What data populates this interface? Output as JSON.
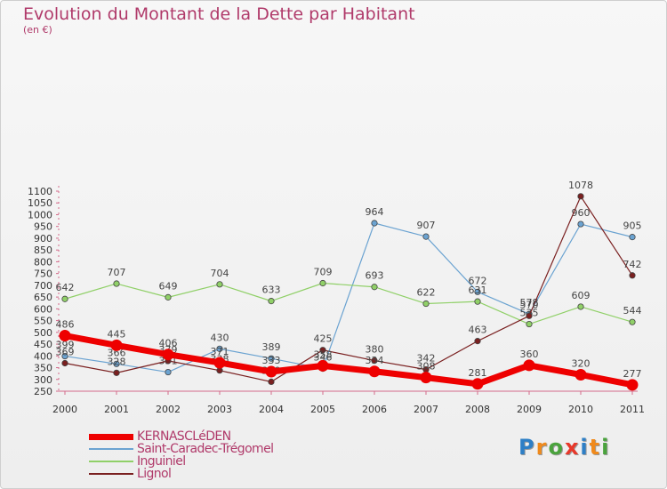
{
  "title": "Evolution du Montant de la Dette par Habitant",
  "subtitle": "(en €)",
  "logo": {
    "text": "Proxiti",
    "letters": [
      {
        "ch": "P",
        "color": "#2e7fc6"
      },
      {
        "ch": "r",
        "color": "#f08a1c"
      },
      {
        "ch": "o",
        "color": "#4aa33d"
      },
      {
        "ch": "x",
        "color": "#e8382a"
      },
      {
        "ch": "i",
        "color": "#2e7fc6"
      },
      {
        "ch": "t",
        "color": "#f08a1c"
      },
      {
        "ch": "i",
        "color": "#4aa33d"
      }
    ]
  },
  "chart_data": {
    "type": "line",
    "x": [
      "2000",
      "2001",
      "2002",
      "2003",
      "2004",
      "2005",
      "2006",
      "2007",
      "2008",
      "2009",
      "2010",
      "2011"
    ],
    "y_ticks": [
      250,
      300,
      350,
      400,
      450,
      500,
      550,
      600,
      650,
      700,
      750,
      800,
      850,
      900,
      950,
      1000,
      1050,
      1100
    ],
    "ylim": [
      250,
      1100
    ],
    "grid": false,
    "legend_position": "bottom-left",
    "series": [
      {
        "name": "KERNASCLéDEN",
        "color": "#ee0000",
        "values": [
          486,
          445,
          406,
          371,
          333,
          358,
          334,
          308,
          281,
          360,
          320,
          277
        ]
      },
      {
        "name": "Saint-Caradec-Trégomel",
        "color": "#6ba3d1",
        "values": [
          399,
          366,
          331,
          430,
          389,
          346,
          964,
          907,
          672,
          578,
          960,
          905
        ]
      },
      {
        "name": "Inguiniel",
        "color": "#90d068",
        "values": [
          642,
          707,
          649,
          704,
          633,
          709,
          693,
          622,
          631,
          535,
          609,
          544
        ]
      },
      {
        "name": "Lignol",
        "color": "#7a2020",
        "values": [
          369,
          328,
          379,
          338,
          290,
          425,
          380,
          342,
          463,
          570,
          1078,
          742
        ]
      }
    ]
  }
}
